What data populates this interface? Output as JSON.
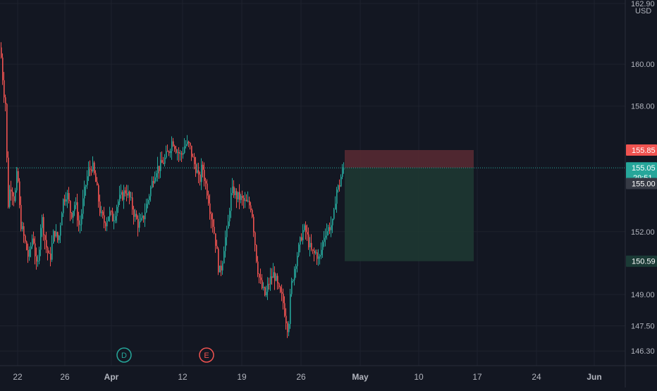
{
  "chart_data": {
    "type": "candlestick",
    "currency": "USD",
    "background": "#131722",
    "colors": {
      "up": "#26a69a",
      "down": "#ef5350",
      "grid": "#1e222d",
      "axis_text": "#b2b5be",
      "current_price_line": "#26a69a",
      "stop_zone": "#5a2a33",
      "target_zone": "#1f3a32",
      "level_label_bg": "#363a45"
    },
    "y_axis": {
      "ylim": [
        145.6,
        162.9
      ],
      "ticks": [
        {
          "value": 162.9,
          "label": "162.90"
        },
        {
          "value": 160.0,
          "label": "160.00"
        },
        {
          "value": 158.0,
          "label": "158.00"
        },
        {
          "value": 152.0,
          "label": "152.00"
        },
        {
          "value": 149.0,
          "label": "149.00"
        },
        {
          "value": 147.5,
          "label": "147.50"
        },
        {
          "value": 146.3,
          "label": "146.30"
        }
      ]
    },
    "x_axis": {
      "ticks": [
        {
          "label": "22",
          "bold": false
        },
        {
          "label": "26",
          "bold": false
        },
        {
          "label": "Apr",
          "bold": true
        },
        {
          "label": "12",
          "bold": false
        },
        {
          "label": "19",
          "bold": false
        },
        {
          "label": "26",
          "bold": false
        },
        {
          "label": "May",
          "bold": true
        },
        {
          "label": "10",
          "bold": false
        },
        {
          "label": "17",
          "bold": false
        },
        {
          "label": "24",
          "bold": false
        },
        {
          "label": "Jun",
          "bold": true
        }
      ]
    },
    "candle_path": [
      [
        0,
        160.8
      ],
      [
        4,
        158.9
      ],
      [
        8,
        157.9
      ],
      [
        10,
        153.0
      ],
      [
        14,
        154.3
      ],
      [
        20,
        153.5
      ],
      [
        24,
        155.0
      ],
      [
        28,
        152.5
      ],
      [
        34,
        151.6
      ],
      [
        40,
        150.7
      ],
      [
        46,
        151.9
      ],
      [
        52,
        150.0
      ],
      [
        58,
        152.8
      ],
      [
        64,
        151.4
      ],
      [
        70,
        150.6
      ],
      [
        76,
        152.1
      ],
      [
        82,
        151.5
      ],
      [
        88,
        153.4
      ],
      [
        94,
        153.9
      ],
      [
        100,
        152.8
      ],
      [
        106,
        153.4
      ],
      [
        112,
        152.1
      ],
      [
        118,
        153.7
      ],
      [
        124,
        154.8
      ],
      [
        130,
        155.2
      ],
      [
        136,
        154.2
      ],
      [
        142,
        152.8
      ],
      [
        148,
        152.4
      ],
      [
        154,
        152.9
      ],
      [
        160,
        152.6
      ],
      [
        166,
        153.4
      ],
      [
        172,
        153.7
      ],
      [
        178,
        154.0
      ],
      [
        184,
        153.5
      ],
      [
        190,
        152.8
      ],
      [
        196,
        152.3
      ],
      [
        202,
        152.6
      ],
      [
        208,
        153.4
      ],
      [
        214,
        154.2
      ],
      [
        220,
        155.0
      ],
      [
        226,
        155.1
      ],
      [
        232,
        155.4
      ],
      [
        238,
        155.8
      ],
      [
        244,
        156.4
      ],
      [
        250,
        155.9
      ],
      [
        256,
        155.6
      ],
      [
        262,
        156.2
      ],
      [
        268,
        156.1
      ],
      [
        274,
        155.3
      ],
      [
        278,
        155.0
      ],
      [
        282,
        154.3
      ],
      [
        286,
        155.2
      ],
      [
        290,
        154.4
      ],
      [
        294,
        153.8
      ],
      [
        298,
        152.9
      ],
      [
        302,
        152.2
      ],
      [
        306,
        151.3
      ],
      [
        310,
        150.0
      ],
      [
        314,
        150.4
      ],
      [
        318,
        151.6
      ],
      [
        322,
        152.0
      ],
      [
        326,
        153.6
      ],
      [
        330,
        154.0
      ],
      [
        334,
        153.7
      ],
      [
        340,
        153.6
      ],
      [
        346,
        153.4
      ],
      [
        352,
        153.3
      ],
      [
        356,
        153.2
      ],
      [
        360,
        151.8
      ],
      [
        364,
        150.4
      ],
      [
        368,
        149.6
      ],
      [
        372,
        149.2
      ],
      [
        376,
        148.9
      ],
      [
        380,
        149.5
      ],
      [
        384,
        149.8
      ],
      [
        388,
        150.0
      ],
      [
        392,
        149.5
      ],
      [
        396,
        149.0
      ],
      [
        400,
        148.8
      ],
      [
        404,
        148.0
      ],
      [
        408,
        147.3
      ],
      [
        412,
        149.3
      ],
      [
        416,
        150.1
      ],
      [
        420,
        150.8
      ],
      [
        424,
        151.3
      ],
      [
        428,
        152.0
      ],
      [
        432,
        152.1
      ],
      [
        436,
        151.6
      ],
      [
        440,
        151.1
      ],
      [
        444,
        150.9
      ],
      [
        448,
        151.0
      ],
      [
        452,
        150.6
      ],
      [
        456,
        151.3
      ],
      [
        460,
        152.0
      ],
      [
        464,
        152.1
      ],
      [
        468,
        152.3
      ],
      [
        472,
        152.4
      ],
      [
        476,
        154.0
      ],
      [
        480,
        154.1
      ],
      [
        484,
        154.8
      ],
      [
        488,
        155.05
      ]
    ],
    "position": {
      "x_start": 489,
      "x_end": 672,
      "stop_price": 155.9,
      "entry_price": 155.05,
      "target_price": 150.59
    },
    "price_labels": {
      "stop": {
        "text": "155.85",
        "color": "#ef5350"
      },
      "current": {
        "text": "155.05",
        "countdown": "29:51",
        "color": "#26a69a"
      },
      "level": {
        "text": "155.00"
      },
      "target": {
        "text": "150.59"
      }
    },
    "events": [
      {
        "letter": "D",
        "color": "#26a69a",
        "x_data": 176
      },
      {
        "letter": "E",
        "color": "#ef5350",
        "x_data": 293
      }
    ]
  }
}
